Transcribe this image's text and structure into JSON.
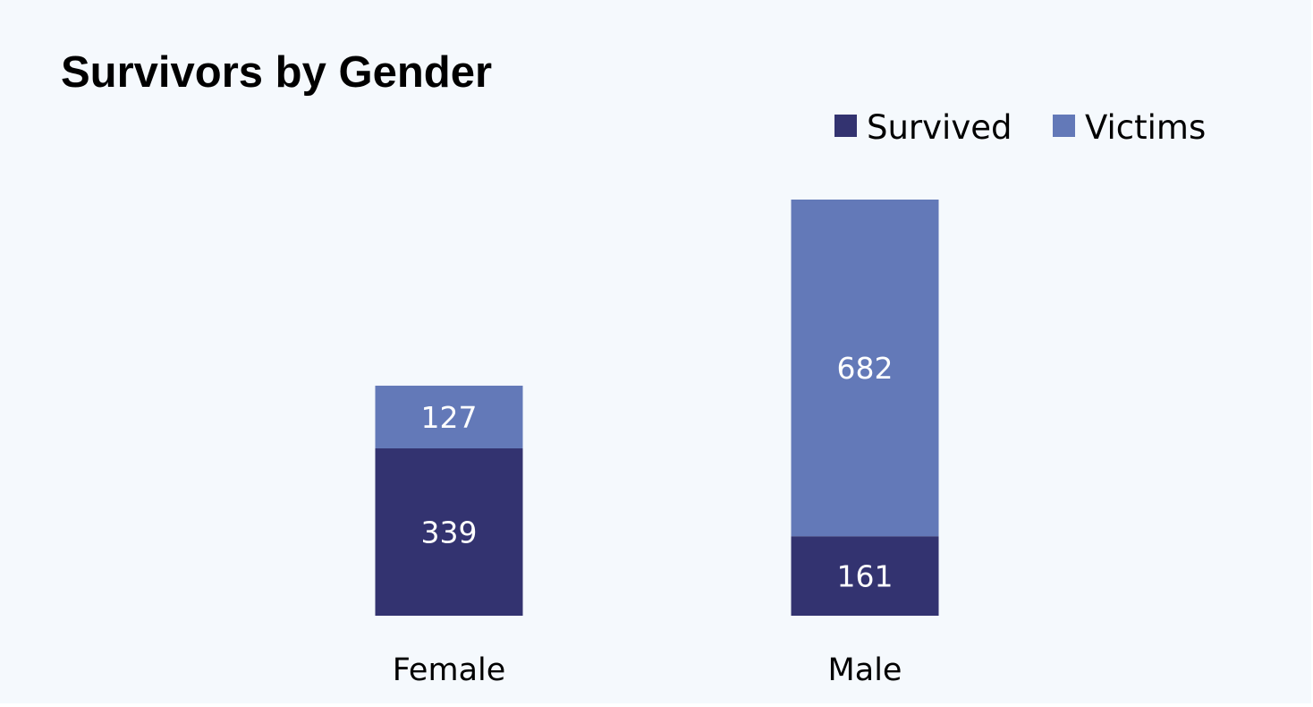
{
  "chart_data": {
    "type": "bar",
    "stacked": true,
    "title": "Survivors by Gender",
    "xlabel": "",
    "ylabel": "",
    "categories": [
      "Female",
      "Male"
    ],
    "series": [
      {
        "name": "Survived",
        "values": [
          339,
          161
        ],
        "color": "#333370"
      },
      {
        "name": "Victims",
        "values": [
          127,
          682
        ],
        "color": "#6379b8"
      }
    ],
    "ylim": [
      0,
      843
    ],
    "grid": false,
    "legend": "top-right",
    "data_labels": true
  }
}
